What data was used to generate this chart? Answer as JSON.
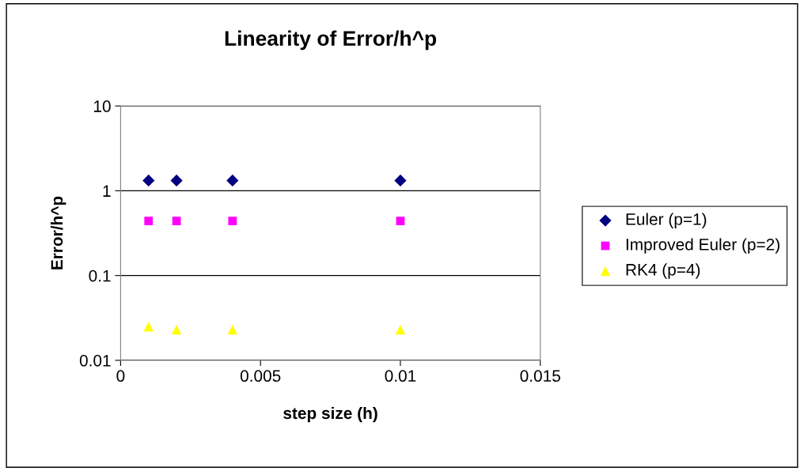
{
  "chart_data": {
    "type": "scatter",
    "title": "Linearity of Error/h^p",
    "xlabel": "step size (h)",
    "ylabel": "Error/h^p",
    "x": [
      0.001,
      0.002,
      0.004,
      0.01
    ],
    "series": [
      {
        "name": "Euler (p=1)",
        "color": "#000080",
        "marker": "diamond",
        "values": [
          1.32,
          1.32,
          1.32,
          1.32
        ]
      },
      {
        "name": "Improved Euler (p=2)",
        "color": "#ff00ff",
        "marker": "square",
        "values": [
          0.44,
          0.44,
          0.44,
          0.44
        ]
      },
      {
        "name": "RK4 (p=4)",
        "color": "#ffff00",
        "marker": "triangle",
        "values": [
          0.025,
          0.023,
          0.023,
          0.023
        ]
      }
    ],
    "log": "y",
    "xlim": [
      0,
      0.015
    ],
    "xticks": [
      0,
      0.005,
      0.01,
      0.015
    ],
    "ylim": [
      0.01,
      10
    ],
    "yticks": [
      0.01,
      0.1,
      1,
      10
    ],
    "grid": "y",
    "legend": "right"
  }
}
